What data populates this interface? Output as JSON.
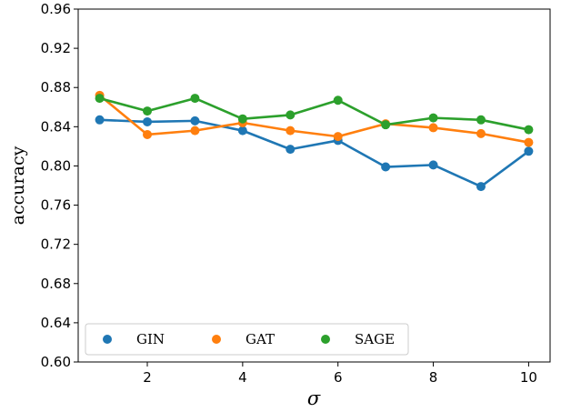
{
  "chart_data": {
    "type": "line",
    "title": "",
    "xlabel": "σ",
    "ylabel": "accuracy",
    "x": [
      1,
      2,
      3,
      4,
      5,
      6,
      7,
      8,
      9,
      10
    ],
    "xticks": [
      2,
      4,
      6,
      8,
      10
    ],
    "xlim": [
      0.55,
      10.45
    ],
    "yticks": [
      0.6,
      0.64,
      0.68,
      0.72,
      0.76,
      0.8,
      0.84,
      0.88,
      0.92,
      0.96
    ],
    "ytick_labels": [
      "0.60",
      "0.64",
      "0.68",
      "0.72",
      "0.76",
      "0.80",
      "0.84",
      "0.88",
      "0.92",
      "0.96"
    ],
    "ylim": [
      0.6,
      0.96
    ],
    "grid": false,
    "legend_position": "lower-left",
    "series": [
      {
        "name": "GIN",
        "color": "#1f77b4",
        "values": [
          0.847,
          0.845,
          0.846,
          0.836,
          0.817,
          0.826,
          0.799,
          0.801,
          0.779,
          0.815
        ]
      },
      {
        "name": "GAT",
        "color": "#ff7f0e",
        "values": [
          0.872,
          0.832,
          0.836,
          0.844,
          0.836,
          0.83,
          0.843,
          0.839,
          0.833,
          0.824
        ]
      },
      {
        "name": "SAGE",
        "color": "#2ca02c",
        "values": [
          0.869,
          0.856,
          0.869,
          0.848,
          0.852,
          0.867,
          0.842,
          0.849,
          0.847,
          0.837
        ]
      }
    ]
  }
}
